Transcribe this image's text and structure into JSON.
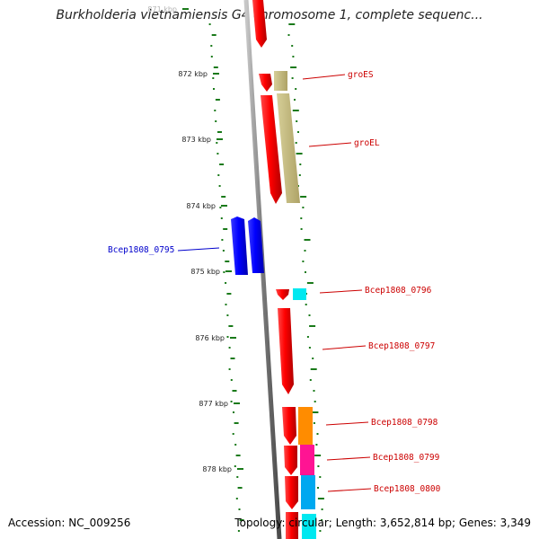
{
  "title": "Burkholderia vietnamiensis G4 chromosome 1, complete sequenc...",
  "footer": {
    "accession": "Accession: NC_009256",
    "summary": "Topology: circular; Length: 3,652,814 bp; Genes: 3,349"
  },
  "ticks": [
    {
      "label": "871 kbp"
    },
    {
      "label": "872 kbp"
    },
    {
      "label": "873 kbp"
    },
    {
      "label": "874 kbp"
    },
    {
      "label": "875 kbp"
    },
    {
      "label": "876 kbp"
    },
    {
      "label": "877 kbp"
    },
    {
      "label": "878 kbp"
    }
  ],
  "genes": [
    {
      "name": "groES",
      "color": "#cc0000"
    },
    {
      "name": "groEL",
      "color": "#cc0000"
    },
    {
      "name": "Bcep1808_0795",
      "color": "#0000cc"
    },
    {
      "name": "Bcep1808_0796",
      "color": "#cc0000"
    },
    {
      "name": "Bcep1808_0797",
      "color": "#cc0000"
    },
    {
      "name": "Bcep1808_0798",
      "color": "#cc0000"
    },
    {
      "name": "Bcep1808_0799",
      "color": "#cc0000"
    },
    {
      "name": "Bcep1808_0800",
      "color": "#cc0000"
    }
  ],
  "colors": {
    "backbone": "#8c8c8c",
    "forward_cds": "#ff0000",
    "reverse_cds": "#0000ff",
    "cog_olive": "#c2b97a",
    "cog_cyan": "#00e8f0",
    "cog_orange": "#ff8c00",
    "cog_magenta": "#ff1493",
    "cog_sky": "#00a8f0",
    "gc_dots": "#1a7a1a"
  }
}
